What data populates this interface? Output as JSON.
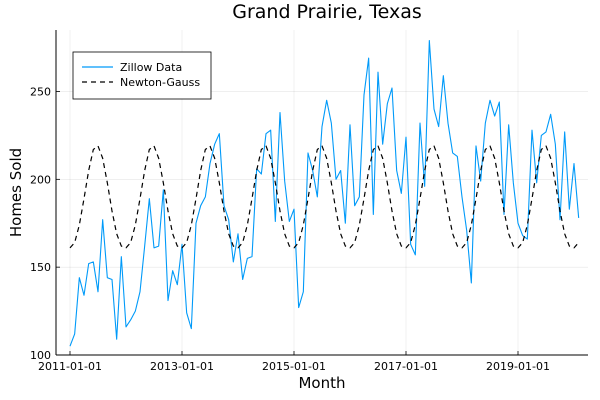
{
  "chart_data": {
    "type": "line",
    "title": "Grand Prairie, Texas",
    "xlabel": "Month",
    "ylabel": "Homes Sold",
    "x_start": "2011-01-01",
    "x_ticks": [
      "2011-01-01",
      "2013-01-01",
      "2015-01-01",
      "2017-01-01",
      "2019-01-01"
    ],
    "xlim": [
      "2010-10-01",
      "2020-04-01"
    ],
    "ylim": [
      100,
      285
    ],
    "y_ticks": [
      100,
      150,
      200,
      250
    ],
    "grid": true,
    "legend_position": "top-left",
    "series": [
      {
        "name": "Zillow Data",
        "color": "#009af9",
        "style": "solid",
        "values": [
          105,
          112,
          144,
          134,
          152,
          153,
          136,
          177,
          144,
          143,
          109,
          156,
          116,
          120,
          125,
          136,
          162,
          189,
          161,
          162,
          194,
          131,
          148,
          140,
          163,
          124,
          115,
          175,
          185,
          190,
          209,
          220,
          226,
          185,
          177,
          153,
          169,
          143,
          155,
          156,
          206,
          203,
          226,
          228,
          176,
          238,
          199,
          176,
          183,
          127,
          136,
          215,
          205,
          190,
          230,
          245,
          232,
          200,
          205,
          175,
          231,
          185,
          190,
          248,
          269,
          180,
          261,
          220,
          243,
          252,
          205,
          192,
          224,
          163,
          157,
          232,
          196,
          279,
          240,
          230,
          259,
          232,
          215,
          213,
          190,
          171,
          141,
          219,
          199,
          232,
          245,
          236,
          244,
          180,
          231,
          198,
          175,
          168,
          166,
          228,
          198,
          225,
          227,
          237,
          220,
          177,
          227,
          183,
          209,
          178
        ]
      },
      {
        "name": "Newton-Gauss",
        "color": "#000000",
        "style": "dashed",
        "values": [
          161,
          164,
          174,
          189,
          205,
          217,
          219,
          212,
          198,
          182,
          169,
          162,
          161,
          164,
          174,
          189,
          205,
          217,
          219,
          212,
          198,
          182,
          169,
          162,
          161,
          164,
          174,
          189,
          205,
          217,
          219,
          212,
          198,
          182,
          169,
          162,
          161,
          164,
          174,
          189,
          205,
          217,
          219,
          212,
          198,
          182,
          169,
          162,
          161,
          164,
          174,
          189,
          205,
          217,
          219,
          212,
          198,
          182,
          169,
          162,
          161,
          164,
          174,
          189,
          205,
          217,
          219,
          212,
          198,
          182,
          169,
          162,
          161,
          164,
          174,
          189,
          205,
          217,
          219,
          212,
          198,
          182,
          169,
          162,
          161,
          164,
          174,
          189,
          205,
          217,
          219,
          212,
          198,
          182,
          169,
          162,
          161,
          164,
          174,
          189,
          205,
          217,
          219,
          212,
          198,
          182,
          169,
          162,
          161,
          164
        ]
      }
    ]
  }
}
